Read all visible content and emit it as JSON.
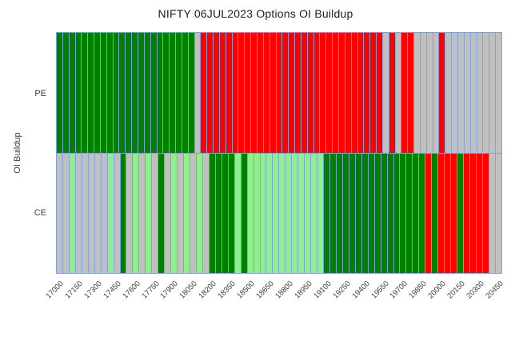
{
  "chart_data": {
    "type": "heatmap",
    "title": "NIFTY 06JUL2023 Options OI Buildup",
    "ylabel": "OI Buildup",
    "rows": [
      "PE",
      "CE"
    ],
    "strikes": [
      17000,
      17050,
      17100,
      17150,
      17200,
      17250,
      17300,
      17350,
      17400,
      17450,
      17500,
      17550,
      17600,
      17650,
      17700,
      17750,
      17800,
      17850,
      17900,
      17950,
      18000,
      18050,
      18100,
      18150,
      18200,
      18250,
      18300,
      18350,
      18400,
      18450,
      18500,
      18550,
      18600,
      18650,
      18700,
      18750,
      18800,
      18850,
      18900,
      18950,
      19000,
      19050,
      19100,
      19150,
      19200,
      19250,
      19300,
      19350,
      19400,
      19450,
      19500,
      19550,
      19600,
      19650,
      19700,
      19750,
      19800,
      19850,
      19900,
      19950,
      20000,
      20050,
      20100,
      20150,
      20200,
      20250,
      20300,
      20350,
      20400,
      20450
    ],
    "x_tick_labels": [
      "17000",
      "17150",
      "17300",
      "17450",
      "17600",
      "17750",
      "17900",
      "18050",
      "18200",
      "18350",
      "18500",
      "18650",
      "18800",
      "18950",
      "19100",
      "19250",
      "19400",
      "19550",
      "19700",
      "19850",
      "20000",
      "20150",
      "20300",
      "20450"
    ],
    "x_tick_every": 3,
    "series": [
      {
        "name": "PE",
        "values": "GGGGGGGGGGGGGGGGGGGGGGNRRRRRRRRRRRRRRRRRRRRRRRRRRRRRNRNRRNNNNRNNNNNNNNN"
      },
      {
        "name": "CE",
        "values": "NNLNNNNNLNGNLNLNGNLNLNLNGGGGLGLLLLLLLLLLLLGGGGGGGGGGGGGGGGRGRRRGRRRRNN"
      }
    ],
    "cell_colors": {
      "G": "#008000",
      "L": "#90EE90",
      "R": "#FF0000",
      "N": "#C0C0C0"
    },
    "grid_color": "#7FA3DC",
    "plot_bg": "#E6E6FA",
    "legend_position": "none",
    "grid": true
  }
}
